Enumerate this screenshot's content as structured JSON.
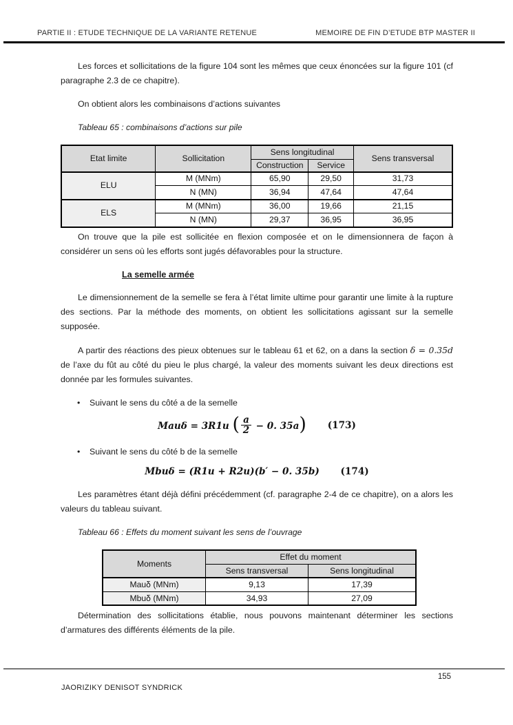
{
  "header": {
    "left": "PARTIE II : ETUDE TECHNIQUE DE LA VARIANTE RETENUE",
    "right": "MEMOIRE DE FIN D’ETUDE BTP MASTER II"
  },
  "paragraphs": {
    "p1": "Les forces et sollicitations de la figure 104 sont les mêmes que ceux énoncées sur la figure 101 (cf paragraphe 2.3 de ce chapitre).",
    "p2": "On obtient alors les combinaisons d’actions suivantes",
    "p3": "On trouve que la pile est sollicitée en flexion composée et on le dimensionnera de façon à considérer un sens où les efforts sont jugés défavorables pour la structure.",
    "heading_semelle": "La semelle armée",
    "p4": "Le dimensionnement de la semelle se fera à l’état limite ultime pour garantir une limite à la rupture des sections. Par la méthode des moments, on obtient les sollicitations agissant sur la semelle supposée.",
    "p5_pre": "A partir des réactions des pieux obtenues sur le tableau 61 et 62, on a dans la section ",
    "p5_math": "δ = 0.35d",
    "p5_post": " de l’axe du fût au côté du pieu le plus chargé, la valeur des moments suivant les deux directions est donnée par les formules suivantes.",
    "bullet_char": "•",
    "bullet_a": "Suivant le sens du côté a de la semelle",
    "bullet_b": "Suivant le sens du côté b de la semelle",
    "p6": "Les paramètres étant déjà défini précédemment (cf. paragraphe 2-4 de ce chapitre), on a alors les valeurs du tableau suivant.",
    "p7": "Détermination des sollicitations établie, nous pouvons maintenant déterminer les sections d’armatures des différents éléments de la pile."
  },
  "formula173": {
    "lhs": "Mauδ = 3R1u",
    "paren_open": "(",
    "frac_num": "a",
    "frac_den": "2",
    "rest": "− 0. 35a",
    "paren_close": ")",
    "tag": "(173)"
  },
  "formula174": {
    "body": "Mbuδ = (R1u + R2u)(b′ − 0. 35b)",
    "tag": "(174)"
  },
  "table65": {
    "caption": "Tableau 65 : combinaisons d’actions sur pile",
    "header": {
      "etat_limite": "Etat limite",
      "sollicitation": "Sollicitation",
      "sens_longitudinal": "Sens longitudinal",
      "construction": "Construction",
      "service": "Service",
      "sens_transversal": "Sens transversal"
    },
    "groups": [
      {
        "etat": "ELU"
      },
      {
        "etat": "ELS"
      }
    ],
    "rows": [
      {
        "etat": "ELU",
        "sollicitation": "M (MNm)",
        "construction": "65,90",
        "service": "29,50",
        "transversal": "31,73"
      },
      {
        "etat": "ELU",
        "sollicitation": "N (MN)",
        "construction": "36,94",
        "service": "47,64",
        "transversal": "47,64"
      },
      {
        "etat": "ELS",
        "sollicitation": "M (MNm)",
        "construction": "36,00",
        "service": "19,66",
        "transversal": "21,15"
      },
      {
        "etat": "ELS",
        "sollicitation": "N (MN)",
        "construction": "29,37",
        "service": "36,95",
        "transversal": "36,95"
      }
    ]
  },
  "table66": {
    "caption": "Tableau 66 : Effets du moment suivant les sens de l’ouvrage",
    "header": {
      "moments": "Moments",
      "effet": "Effet du moment",
      "transversal": "Sens transversal",
      "longitudinal": "Sens longitudinal"
    },
    "rows": [
      {
        "label": "Mauδ (MNm)",
        "transversal": "9,13",
        "longitudinal": "17,39"
      },
      {
        "label": "Mbuδ (MNm)",
        "transversal": "34,93",
        "longitudinal": "27,09"
      }
    ]
  },
  "footer": {
    "page_number": "155",
    "author": "JAORIZIKY DENISOT SYNDRICK"
  },
  "colors": {
    "table_header_bg": "#d9d9d9",
    "table_label_bg": "#efefef",
    "rule_color": "#000000",
    "text_color": "#1c1c1c"
  }
}
